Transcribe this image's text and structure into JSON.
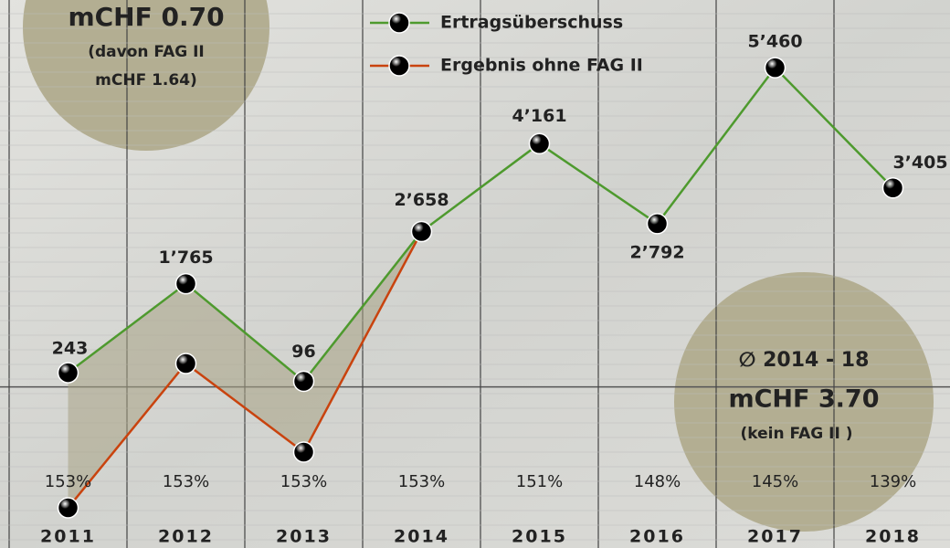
{
  "chart_data": {
    "type": "line",
    "categories": [
      "2011",
      "2012",
      "2013",
      "2014",
      "2015",
      "2016",
      "2017",
      "2018"
    ],
    "series": [
      {
        "name": "Ertragsüberschuss",
        "color": "#4e9a2e",
        "values": [
          243,
          1765,
          96,
          2658,
          4161,
          2792,
          5460,
          3405
        ],
        "value_labels": [
          "243",
          "1’765",
          "96",
          "2’658",
          "4’161",
          "2’792",
          "5’460",
          "3’405"
        ]
      },
      {
        "name": "Ergebnis ohne FAG II",
        "color": "#c9430e",
        "values": [
          -2069,
          400,
          -1115,
          2658,
          null,
          null,
          null,
          null
        ]
      }
    ],
    "ylim": [
      -2756,
      6619
    ],
    "ratio_labels": [
      "153%",
      "153%",
      "153%",
      "153%",
      "151%",
      "148%",
      "145%",
      "139%"
    ],
    "callouts": [
      {
        "lines": [
          "mCHF 0.70",
          "(davon FAG II",
          "mCHF 1.64)"
        ]
      },
      {
        "lines": [
          "∅ 2014 - 18",
          "mCHF 3.70",
          "(kein FAG II )"
        ]
      }
    ],
    "grid": true
  }
}
